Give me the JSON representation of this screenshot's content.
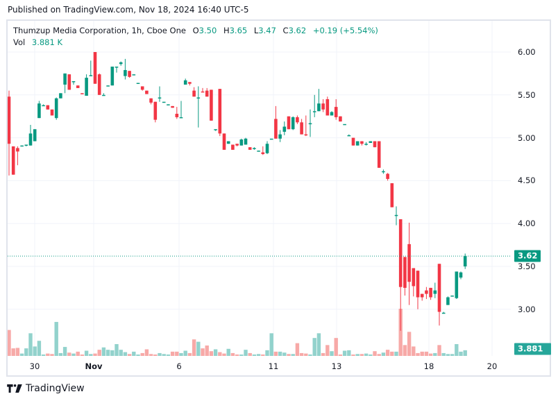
{
  "header": {
    "published": "Published on TradingView.com, Nov 18, 2024 16:40 UTC-5"
  },
  "legend": {
    "symbol": "Thumzup Media Corporation, 1h, Cboe One",
    "open_label": "O",
    "open": "3.50",
    "high_label": "H",
    "high": "3.65",
    "low_label": "L",
    "low": "3.47",
    "close_label": "C",
    "close": "3.62",
    "change": "+0.19 (+5.54%)",
    "vol_label": "Vol",
    "vol": "3.881 K"
  },
  "price_axis": {
    "labels": [
      "6.00",
      "5.50",
      "5.00",
      "4.50",
      "4.00",
      "3.50",
      "3.00"
    ],
    "last_price_tag": "3.62",
    "last_volume_tag": "3.881 K"
  },
  "time_axis": {
    "labels": [
      {
        "text": "30",
        "x": 50,
        "bold": false
      },
      {
        "text": "Nov",
        "x": 135,
        "bold": true
      },
      {
        "text": "6",
        "x": 258,
        "bold": false
      },
      {
        "text": "11",
        "x": 394,
        "bold": false
      },
      {
        "text": "13",
        "x": 485,
        "bold": false
      },
      {
        "text": "18",
        "x": 618,
        "bold": false
      },
      {
        "text": "20",
        "x": 709,
        "bold": false
      }
    ]
  },
  "colors": {
    "up": "#089981",
    "down": "#f23645",
    "up_volume": "#92d2cc",
    "down_volume": "#f7a9a7",
    "grid": "#f0f3fa",
    "last_price": "#089981"
  },
  "footer": {
    "brand": "TradingView",
    "logo_icon": "tradingview-logo-icon"
  },
  "chart_data": {
    "type": "candlestick",
    "title": "Thumzup Media Corporation, 1h, Cboe One",
    "xlabel": "",
    "ylabel": "Price",
    "ylim": [
      2.52,
      6.08
    ],
    "grid": true,
    "x_tick_labels": [
      "30",
      "Nov",
      "6",
      "11",
      "13",
      "18",
      "20"
    ],
    "y_tick_labels": [
      "6.00",
      "5.50",
      "5.00",
      "4.50",
      "4.00",
      "3.50",
      "3.00"
    ],
    "last_close": 3.62,
    "last_volume": "3.881 K",
    "columns": [
      "open",
      "high",
      "low",
      "close",
      "volume_rel"
    ],
    "candles": [
      [
        5.48,
        5.55,
        4.56,
        4.93,
        0.55
      ],
      [
        4.9,
        4.9,
        4.57,
        4.57,
        0.16
      ],
      [
        4.88,
        4.9,
        4.68,
        4.84,
        0.17
      ],
      [
        4.91,
        4.91,
        4.9,
        4.91,
        0.05
      ],
      [
        4.91,
        4.92,
        4.9,
        4.92,
        0.16
      ],
      [
        4.91,
        5.15,
        4.91,
        5.05,
        0.48
      ],
      [
        4.96,
        5.1,
        4.96,
        5.1,
        0.2
      ],
      [
        5.23,
        5.43,
        5.23,
        5.4,
        0.32
      ],
      [
        5.38,
        5.39,
        5.38,
        5.38,
        0.03
      ],
      [
        5.38,
        5.38,
        5.33,
        5.33,
        0.05
      ],
      [
        5.33,
        5.33,
        5.26,
        5.26,
        0.04
      ],
      [
        5.23,
        5.47,
        5.21,
        5.46,
        0.72
      ],
      [
        5.46,
        5.52,
        5.46,
        5.52,
        0.06
      ],
      [
        5.62,
        5.74,
        5.52,
        5.75,
        0.19
      ],
      [
        5.74,
        5.74,
        5.56,
        5.56,
        0.07
      ],
      [
        5.66,
        5.66,
        5.62,
        5.66,
        0.05
      ],
      [
        5.61,
        5.61,
        5.58,
        5.58,
        0.09
      ],
      [
        5.52,
        5.52,
        5.51,
        5.51,
        0.01
      ],
      [
        5.49,
        5.74,
        5.49,
        5.7,
        0.11
      ],
      [
        5.72,
        5.9,
        5.72,
        5.73,
        0.04
      ],
      [
        6.0,
        6.0,
        5.63,
        5.63,
        0.05
      ],
      [
        5.74,
        5.75,
        5.5,
        5.5,
        0.13
      ],
      [
        5.5,
        5.52,
        5.49,
        5.5,
        0.18
      ],
      [
        5.6,
        5.61,
        5.6,
        5.61,
        0.13
      ],
      [
        5.61,
        5.82,
        5.61,
        5.83,
        0.12
      ],
      [
        5.82,
        5.83,
        5.76,
        5.83,
        0.25
      ],
      [
        5.86,
        5.89,
        5.84,
        5.88,
        0.13
      ],
      [
        5.72,
        5.92,
        5.68,
        5.79,
        0.08
      ],
      [
        5.78,
        5.78,
        5.7,
        5.71,
        0.04
      ],
      [
        5.74,
        5.74,
        5.74,
        5.74,
        0.09
      ],
      [
        5.64,
        5.64,
        5.64,
        5.64,
        0.01
      ],
      [
        5.6,
        5.6,
        5.55,
        5.56,
        0.06
      ],
      [
        5.55,
        5.55,
        5.51,
        5.51,
        0.14
      ],
      [
        5.46,
        5.46,
        5.39,
        5.41,
        0.04
      ],
      [
        5.42,
        5.42,
        5.18,
        5.21,
        0.01
      ],
      [
        5.47,
        5.6,
        5.42,
        5.47,
        0.06
      ],
      [
        5.42,
        5.42,
        5.43,
        5.42,
        0.04
      ],
      [
        5.39,
        5.39,
        5.38,
        5.39,
        0.03
      ],
      [
        5.37,
        5.37,
        5.36,
        5.35,
        0.09
      ],
      [
        5.28,
        5.36,
        5.22,
        5.24,
        0.09
      ],
      [
        5.24,
        5.43,
        5.24,
        5.24,
        0.06
      ],
      [
        5.62,
        5.69,
        5.62,
        5.67,
        0.11
      ],
      [
        5.65,
        5.65,
        5.61,
        5.63,
        0.06
      ],
      [
        5.55,
        5.59,
        5.48,
        5.48,
        0.35
      ],
      [
        5.46,
        5.6,
        5.12,
        5.47,
        0.3
      ],
      [
        5.54,
        5.58,
        5.53,
        5.53,
        0.16
      ],
      [
        5.55,
        5.58,
        5.48,
        5.48,
        0.22
      ],
      [
        5.56,
        5.56,
        5.4,
        5.2,
        0.1
      ],
      [
        5.1,
        5.1,
        5.08,
        5.1,
        0.14
      ],
      [
        5.57,
        5.57,
        5.02,
        5.05,
        0.08
      ],
      [
        5.05,
        5.05,
        4.86,
        4.86,
        0.05
      ],
      [
        4.93,
        4.96,
        4.93,
        4.96,
        0.15
      ],
      [
        4.92,
        4.92,
        4.86,
        4.86,
        0.06
      ],
      [
        4.93,
        4.93,
        4.9,
        4.91,
        0.03
      ],
      [
        4.91,
        4.99,
        4.91,
        4.98,
        0.01
      ],
      [
        4.92,
        5.0,
        4.92,
        4.99,
        0.13
      ],
      [
        4.89,
        4.89,
        4.86,
        4.86,
        0.06
      ],
      [
        4.88,
        4.89,
        4.86,
        4.88,
        0.03
      ],
      [
        4.85,
        4.85,
        4.84,
        4.85,
        0.04
      ],
      [
        4.83,
        4.9,
        4.8,
        4.81,
        0.03
      ],
      [
        4.82,
        4.96,
        4.81,
        4.93,
        0.12
      ],
      [
        4.99,
        4.99,
        4.99,
        4.99,
        0.48
      ],
      [
        5.22,
        5.37,
        4.99,
        4.99,
        0.09
      ],
      [
        4.99,
        5.09,
        4.95,
        5.04,
        0.09
      ],
      [
        5.07,
        5.19,
        5.03,
        5.13,
        0.07
      ],
      [
        5.25,
        5.21,
        5.1,
        5.1,
        0.04
      ],
      [
        5.1,
        5.25,
        5.09,
        5.24,
        0.04
      ],
      [
        5.24,
        5.26,
        5.16,
        5.18,
        0.27
      ],
      [
        5.18,
        5.22,
        5.13,
        5.04,
        0.06
      ],
      [
        5.04,
        5.26,
        5.02,
        5.03,
        0.05
      ],
      [
        5.17,
        5.33,
        5.01,
        5.17,
        0.03
      ],
      [
        5.3,
        5.5,
        5.24,
        5.31,
        0.38
      ],
      [
        5.31,
        5.57,
        5.31,
        5.4,
        0.48
      ],
      [
        5.4,
        5.45,
        5.3,
        5.33,
        0.06
      ],
      [
        5.45,
        5.48,
        5.26,
        5.26,
        0.23
      ],
      [
        5.26,
        5.31,
        5.26,
        5.3,
        0.1
      ],
      [
        5.36,
        5.45,
        5.21,
        5.24,
        0.38
      ],
      [
        5.25,
        5.25,
        5.19,
        5.19,
        0.02
      ],
      [
        5.16,
        5.16,
        5.16,
        5.16,
        0.11
      ],
      [
        5.02,
        5.04,
        5.02,
        5.03,
        0.12
      ],
      [
        5.0,
        5.0,
        4.91,
        4.91,
        0.02
      ],
      [
        4.91,
        4.96,
        4.91,
        4.96,
        0.04
      ],
      [
        4.96,
        4.96,
        4.91,
        4.93,
        0.04
      ],
      [
        4.93,
        4.95,
        4.91,
        4.93,
        0.05
      ],
      [
        4.94,
        4.96,
        4.94,
        4.96,
        0.03
      ],
      [
        4.96,
        4.96,
        4.89,
        4.89,
        0.1
      ],
      [
        4.96,
        4.96,
        4.65,
        4.65,
        0.04
      ],
      [
        4.61,
        4.63,
        4.58,
        4.61,
        0.07
      ],
      [
        4.58,
        4.59,
        4.5,
        4.52,
        0.13
      ],
      [
        4.47,
        4.47,
        4.19,
        4.19,
        0.09
      ],
      [
        4.1,
        4.2,
        3.98,
        4.1,
        0.09
      ],
      [
        4.05,
        4.05,
        2.75,
        3.26,
        1.0
      ],
      [
        3.61,
        3.61,
        3.16,
        3.25,
        0.23
      ],
      [
        3.76,
        4.01,
        3.05,
        3.32,
        0.51
      ],
      [
        3.48,
        3.48,
        3.15,
        3.27,
        0.2
      ],
      [
        3.45,
        3.45,
        3.0,
        3.14,
        0.06
      ],
      [
        3.18,
        3.18,
        3.1,
        3.14,
        0.09
      ],
      [
        3.22,
        3.26,
        3.12,
        3.18,
        0.09
      ],
      [
        3.25,
        3.25,
        3.11,
        3.14,
        0.05
      ],
      [
        3.18,
        3.31,
        3.13,
        3.22,
        0.06
      ],
      [
        3.53,
        3.53,
        2.81,
        2.97,
        0.23
      ],
      [
        2.96,
        2.97,
        2.95,
        2.96,
        0.06
      ],
      [
        3.05,
        3.15,
        3.05,
        3.14,
        0.04
      ],
      [
        3.15,
        3.16,
        3.15,
        3.16,
        0.04
      ],
      [
        3.13,
        3.44,
        3.12,
        3.44,
        0.25
      ],
      [
        3.37,
        3.44,
        3.35,
        3.43,
        0.09
      ],
      [
        3.5,
        3.65,
        3.47,
        3.62,
        0.12
      ]
    ]
  }
}
